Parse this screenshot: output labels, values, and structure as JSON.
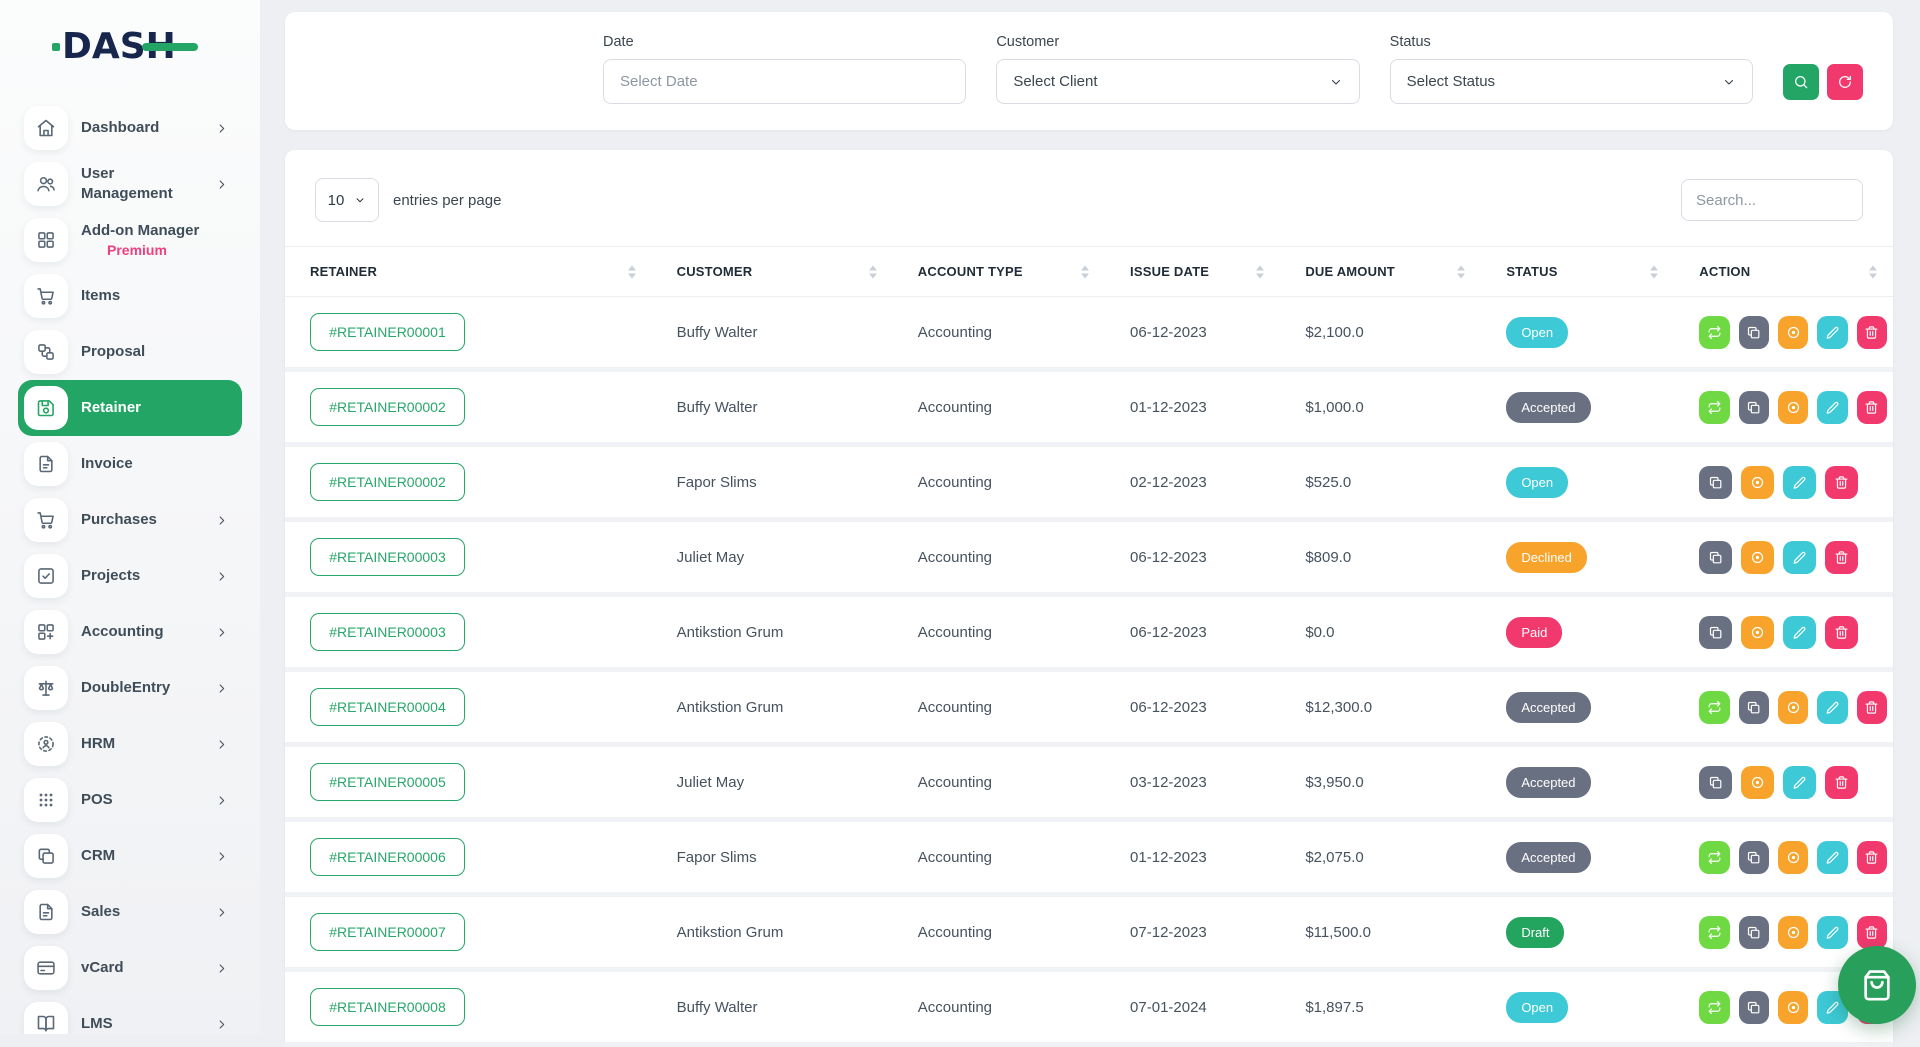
{
  "brand": {
    "name": "DASH",
    "navy": "#17264d",
    "green": "#23a566"
  },
  "sidebar": {
    "items": [
      {
        "label": "Dashboard",
        "icon": "home-icon",
        "chevron": true,
        "active": false
      },
      {
        "label": "User Management",
        "icon": "users-icon",
        "chevron": true,
        "active": false
      },
      {
        "label": "Add-on Manager",
        "sublabel": "Premium",
        "icon": "grid-icon",
        "chevron": false,
        "active": false
      },
      {
        "label": "Items",
        "icon": "cart-icon",
        "chevron": false,
        "active": false
      },
      {
        "label": "Proposal",
        "icon": "workflow-icon",
        "chevron": false,
        "active": false
      },
      {
        "label": "Retainer",
        "icon": "save-icon",
        "chevron": false,
        "active": true
      },
      {
        "label": "Invoice",
        "icon": "document-icon",
        "chevron": false,
        "active": false
      },
      {
        "label": "Purchases",
        "icon": "cart-icon",
        "chevron": true,
        "active": false
      },
      {
        "label": "Projects",
        "icon": "check-square-icon",
        "chevron": true,
        "active": false
      },
      {
        "label": "Accounting",
        "icon": "grid-plus-icon",
        "chevron": true,
        "active": false
      },
      {
        "label": "DoubleEntry",
        "icon": "scale-icon",
        "chevron": true,
        "active": false
      },
      {
        "label": "HRM",
        "icon": "user-focus-icon",
        "chevron": true,
        "active": false
      },
      {
        "label": "POS",
        "icon": "dots-grid-icon",
        "chevron": true,
        "active": false
      },
      {
        "label": "CRM",
        "icon": "copy-icon",
        "chevron": true,
        "active": false
      },
      {
        "label": "Sales",
        "icon": "document-icon",
        "chevron": true,
        "active": false
      },
      {
        "label": "vCard",
        "icon": "credit-card-icon",
        "chevron": true,
        "active": false
      },
      {
        "label": "LMS",
        "icon": "book-icon",
        "chevron": true,
        "active": false
      }
    ]
  },
  "filters": {
    "date": {
      "label": "Date",
      "placeholder": "Select Date"
    },
    "customer": {
      "label": "Customer",
      "value": "Select Client"
    },
    "status": {
      "label": "Status",
      "value": "Select Status"
    },
    "search_icon": "search-icon",
    "refresh_icon": "refresh-icon"
  },
  "table_controls": {
    "entries_value": "10",
    "entries_label": "entries per page",
    "search_placeholder": "Search..."
  },
  "table": {
    "columns": [
      "RETAINER",
      "CUSTOMER",
      "ACCOUNT TYPE",
      "ISSUE DATE",
      "DUE AMOUNT",
      "STATUS",
      "ACTION"
    ],
    "rows": [
      {
        "retainer": "#RETAINER00001",
        "customer": "Buffy Walter",
        "account_type": "Accounting",
        "issue_date": "06-12-2023",
        "due_amount": "$2,100.0",
        "status": "Open",
        "actions": [
          "convert",
          "duplicate",
          "view",
          "edit",
          "delete"
        ]
      },
      {
        "retainer": "#RETAINER00002",
        "customer": "Buffy Walter",
        "account_type": "Accounting",
        "issue_date": "01-12-2023",
        "due_amount": "$1,000.0",
        "status": "Accepted",
        "actions": [
          "convert",
          "duplicate",
          "view",
          "edit",
          "delete"
        ]
      },
      {
        "retainer": "#RETAINER00002",
        "customer": "Fapor Slims",
        "account_type": "Accounting",
        "issue_date": "02-12-2023",
        "due_amount": "$525.0",
        "status": "Open",
        "actions": [
          "duplicate",
          "view",
          "edit",
          "delete"
        ]
      },
      {
        "retainer": "#RETAINER00003",
        "customer": "Juliet May",
        "account_type": "Accounting",
        "issue_date": "06-12-2023",
        "due_amount": "$809.0",
        "status": "Declined",
        "actions": [
          "duplicate",
          "view",
          "edit",
          "delete"
        ]
      },
      {
        "retainer": "#RETAINER00003",
        "customer": "Antikstion Grum",
        "account_type": "Accounting",
        "issue_date": "06-12-2023",
        "due_amount": "$0.0",
        "status": "Paid",
        "actions": [
          "duplicate",
          "view",
          "edit",
          "delete"
        ]
      },
      {
        "retainer": "#RETAINER00004",
        "customer": "Antikstion Grum",
        "account_type": "Accounting",
        "issue_date": "06-12-2023",
        "due_amount": "$12,300.0",
        "status": "Accepted",
        "actions": [
          "convert",
          "duplicate",
          "view",
          "edit",
          "delete"
        ]
      },
      {
        "retainer": "#RETAINER00005",
        "customer": "Juliet May",
        "account_type": "Accounting",
        "issue_date": "03-12-2023",
        "due_amount": "$3,950.0",
        "status": "Accepted",
        "actions": [
          "duplicate",
          "view",
          "edit",
          "delete"
        ]
      },
      {
        "retainer": "#RETAINER00006",
        "customer": "Fapor Slims",
        "account_type": "Accounting",
        "issue_date": "01-12-2023",
        "due_amount": "$2,075.0",
        "status": "Accepted",
        "actions": [
          "convert",
          "duplicate",
          "view",
          "edit",
          "delete"
        ]
      },
      {
        "retainer": "#RETAINER00007",
        "customer": "Antikstion Grum",
        "account_type": "Accounting",
        "issue_date": "07-12-2023",
        "due_amount": "$11,500.0",
        "status": "Draft",
        "actions": [
          "convert",
          "duplicate",
          "view",
          "edit",
          "delete"
        ]
      },
      {
        "retainer": "#RETAINER00008",
        "customer": "Buffy Walter",
        "account_type": "Accounting",
        "issue_date": "07-01-2024",
        "due_amount": "$1,897.5",
        "status": "Open",
        "actions": [
          "convert",
          "duplicate",
          "view",
          "edit",
          "delete"
        ]
      }
    ]
  },
  "status_colors": {
    "Open": "#3ec9d6",
    "Accepted": "#697081",
    "Declined": "#f8a42c",
    "Paid": "#f1396d",
    "Draft": "#23a45f"
  },
  "action_buttons": {
    "convert": {
      "icon": "repeat-icon",
      "color": "#6fd944"
    },
    "duplicate": {
      "icon": "copy-icon",
      "color": "#697081"
    },
    "view": {
      "icon": "view-icon",
      "color": "#f8a42c"
    },
    "edit": {
      "icon": "pencil-icon",
      "color": "#3ec9d6"
    },
    "delete": {
      "icon": "trash-icon",
      "color": "#f1396d"
    }
  },
  "fab": {
    "icon": "shopping-bag-icon",
    "color": "#28a05c"
  }
}
